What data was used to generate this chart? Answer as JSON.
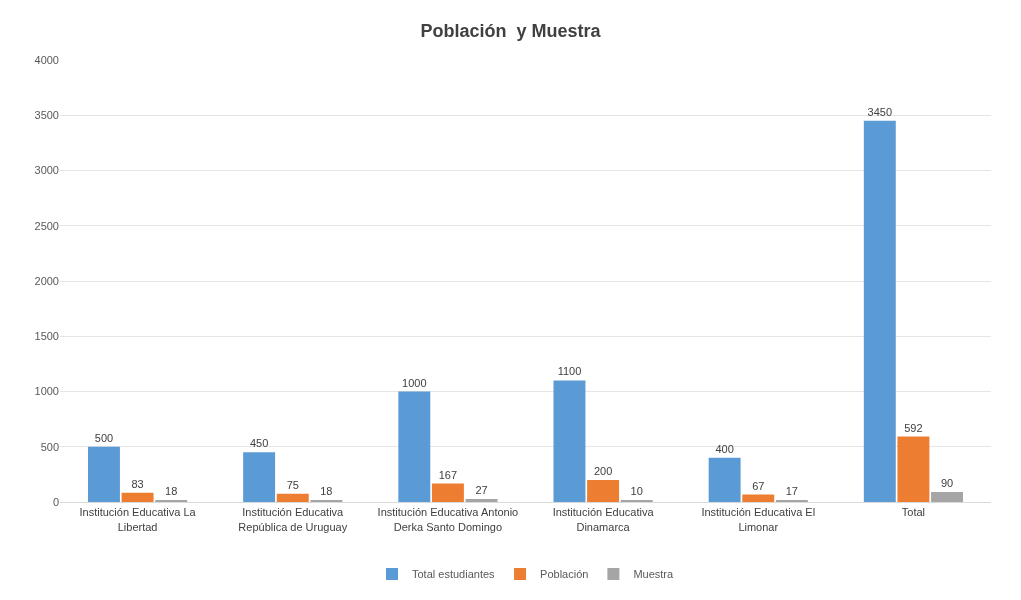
{
  "chart_data": {
    "type": "bar",
    "title": "Población  y Muestra",
    "categories": [
      "Institución Educativa La Libertad",
      "Institución Educativa República de Uruguay",
      "Institución Educativa Antonio Derka Santo Domingo",
      "Institución Educativa Dinamarca",
      "Institución Educativa El Limonar",
      "Total"
    ],
    "series": [
      {
        "name": "Total estudiantes",
        "color": "#5b9bd5",
        "values": [
          500,
          450,
          1000,
          1100,
          400,
          3450
        ]
      },
      {
        "name": "Población",
        "color": "#ed7d31",
        "values": [
          83,
          75,
          167,
          200,
          67,
          592
        ]
      },
      {
        "name": "Muestra",
        "color": "#a5a5a5",
        "values": [
          18,
          18,
          27,
          10,
          17,
          90
        ]
      }
    ],
    "ylim": [
      0,
      4000
    ],
    "yticks": [
      0,
      500,
      1000,
      1500,
      2000,
      2500,
      3000,
      3500,
      4000
    ],
    "grid": "y",
    "legend": "bottom",
    "data_labels": true
  }
}
